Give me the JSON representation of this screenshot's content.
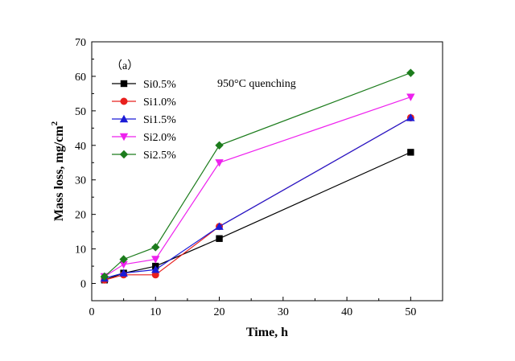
{
  "chart_data": {
    "type": "line",
    "panel_label": "（a）",
    "annotation": "950°C quenching",
    "xlabel": "Time, h",
    "ylabel_main": "Mass loss, mg/cm",
    "ylabel_sup": "2",
    "xlim": [
      0,
      55
    ],
    "ylim": [
      -5,
      70
    ],
    "xticks": [
      0,
      10,
      20,
      30,
      40,
      50
    ],
    "yticks": [
      0,
      10,
      20,
      30,
      40,
      50,
      60,
      70
    ],
    "x": [
      2,
      5,
      10,
      20,
      50
    ],
    "series": [
      {
        "name": "Si0.5%",
        "values": [
          1.0,
          3.0,
          5.0,
          13.0,
          38.0
        ],
        "color": "#000000",
        "marker": "square"
      },
      {
        "name": "Si1.0%",
        "values": [
          1.0,
          2.5,
          2.5,
          16.5,
          48.0
        ],
        "color": "#e8201e",
        "marker": "circle"
      },
      {
        "name": "Si1.5%",
        "values": [
          1.5,
          3.0,
          4.0,
          16.5,
          48.0
        ],
        "color": "#1b1bd6",
        "marker": "triangle"
      },
      {
        "name": "Si2.0%",
        "values": [
          2.0,
          5.5,
          7.0,
          35.0,
          54.0
        ],
        "color": "#ee22ee",
        "marker": "triangle-down"
      },
      {
        "name": "Si2.5%",
        "values": [
          2.0,
          7.0,
          10.5,
          40.0,
          61.0
        ],
        "color": "#1c7c1c",
        "marker": "diamond"
      }
    ]
  }
}
